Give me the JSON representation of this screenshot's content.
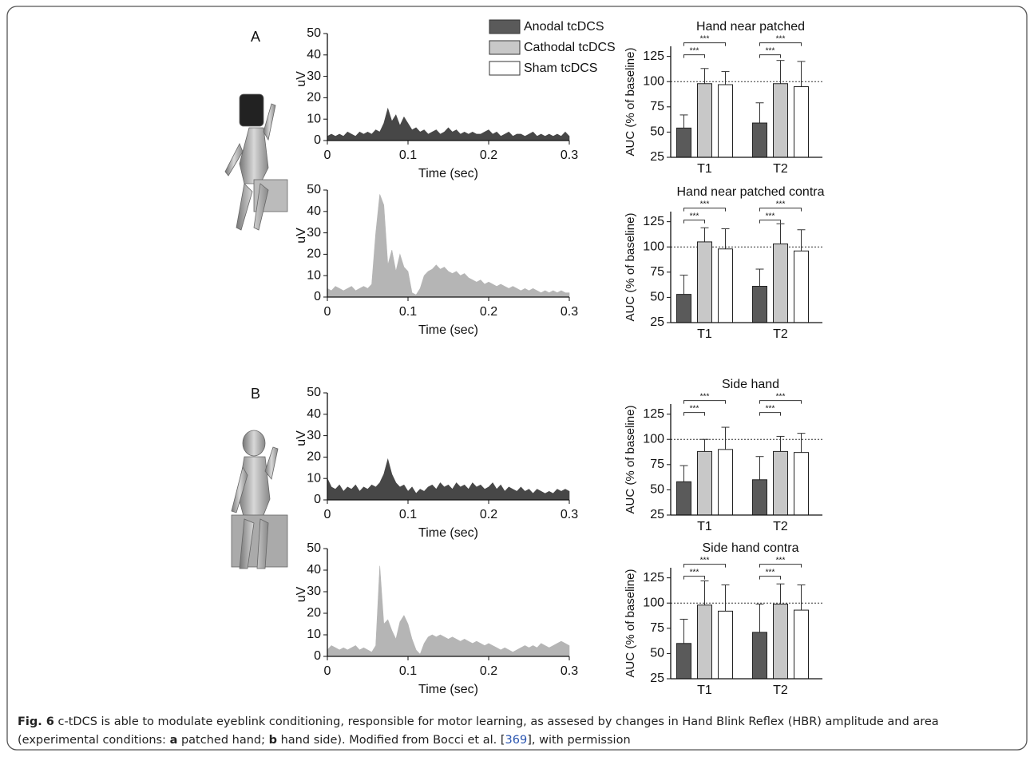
{
  "panels": [
    "A",
    "B"
  ],
  "legend": [
    {
      "name": "Anodal tcDCS",
      "color": "#5a5a5a"
    },
    {
      "name": "Cathodal tcDCS",
      "color": "#c8c8c8"
    },
    {
      "name": "Sham tcDCS",
      "color": "#ffffff"
    }
  ],
  "chart_data": [
    {
      "type": "area",
      "color": "#474747",
      "xlabel": "Time (sec)",
      "ylabel": "uV",
      "xlim": [
        0,
        0.3
      ],
      "ylim": [
        0,
        50
      ],
      "xticks": [
        0,
        0.1,
        0.2,
        0.3
      ],
      "yticks": [
        0,
        10,
        20,
        30,
        40,
        50
      ],
      "x": [
        0,
        0.005,
        0.01,
        0.015,
        0.02,
        0.025,
        0.03,
        0.035,
        0.04,
        0.045,
        0.05,
        0.055,
        0.06,
        0.065,
        0.07,
        0.075,
        0.08,
        0.085,
        0.09,
        0.095,
        0.1,
        0.105,
        0.11,
        0.115,
        0.12,
        0.125,
        0.13,
        0.135,
        0.14,
        0.145,
        0.15,
        0.155,
        0.16,
        0.165,
        0.17,
        0.175,
        0.18,
        0.185,
        0.19,
        0.195,
        0.2,
        0.205,
        0.21,
        0.215,
        0.22,
        0.225,
        0.23,
        0.235,
        0.24,
        0.245,
        0.25,
        0.255,
        0.26,
        0.265,
        0.27,
        0.275,
        0.28,
        0.285,
        0.29,
        0.295,
        0.3
      ],
      "values": [
        2,
        3,
        2,
        3,
        2,
        4,
        3,
        2,
        4,
        3,
        4,
        3,
        5,
        4,
        8,
        15,
        9,
        12,
        7,
        11,
        8,
        5,
        6,
        4,
        5,
        3,
        4,
        5,
        3,
        4,
        6,
        4,
        5,
        3,
        4,
        3,
        4,
        3,
        3,
        4,
        5,
        3,
        4,
        2,
        3,
        4,
        2,
        3,
        3,
        2,
        3,
        4,
        2,
        3,
        2,
        3,
        2,
        3,
        2,
        4,
        2
      ]
    },
    {
      "type": "bar",
      "title": "Hand near patched",
      "ylabel": "AUC (% of baseline)",
      "categories": [
        "T1",
        "T2"
      ],
      "ylim": [
        25,
        135
      ],
      "yticks": [
        25,
        50,
        75,
        100,
        125
      ],
      "refline": 100,
      "series": [
        {
          "color": "#5a5a5a",
          "values": [
            54,
            59
          ],
          "errors": [
            13,
            20
          ]
        },
        {
          "color": "#c8c8c8",
          "values": [
            98,
            98
          ],
          "errors": [
            15,
            23
          ]
        },
        {
          "color": "#ffffff",
          "values": [
            97,
            95
          ],
          "errors": [
            13,
            25
          ]
        }
      ],
      "brackets": [
        {
          "group": 0,
          "from": 0,
          "to": 1,
          "label": "***"
        },
        {
          "group": 0,
          "from": 0,
          "to": 2,
          "label": "***"
        },
        {
          "group": 1,
          "from": 0,
          "to": 1,
          "label": "***"
        },
        {
          "group": 1,
          "from": 0,
          "to": 2,
          "label": "***"
        }
      ]
    },
    {
      "type": "area",
      "color": "#b5b5b5",
      "xlabel": "Time (sec)",
      "ylabel": "uV",
      "xlim": [
        0,
        0.3
      ],
      "ylim": [
        0,
        50
      ],
      "xticks": [
        0,
        0.1,
        0.2,
        0.3
      ],
      "yticks": [
        0,
        10,
        20,
        30,
        40,
        50
      ],
      "x": [
        0,
        0.005,
        0.01,
        0.015,
        0.02,
        0.025,
        0.03,
        0.035,
        0.04,
        0.045,
        0.05,
        0.055,
        0.06,
        0.065,
        0.07,
        0.075,
        0.08,
        0.085,
        0.09,
        0.095,
        0.1,
        0.105,
        0.11,
        0.115,
        0.12,
        0.125,
        0.13,
        0.135,
        0.14,
        0.145,
        0.15,
        0.155,
        0.16,
        0.165,
        0.17,
        0.175,
        0.18,
        0.185,
        0.19,
        0.195,
        0.2,
        0.205,
        0.21,
        0.215,
        0.22,
        0.225,
        0.23,
        0.235,
        0.24,
        0.245,
        0.25,
        0.255,
        0.26,
        0.265,
        0.27,
        0.275,
        0.28,
        0.285,
        0.29,
        0.295,
        0.3
      ],
      "values": [
        4,
        3,
        5,
        4,
        3,
        4,
        5,
        3,
        4,
        5,
        4,
        6,
        30,
        48,
        43,
        15,
        22,
        12,
        20,
        14,
        12,
        2,
        1,
        4,
        10,
        12,
        13,
        15,
        13,
        14,
        12,
        11,
        12,
        10,
        11,
        9,
        8,
        7,
        8,
        6,
        7,
        6,
        5,
        6,
        5,
        4,
        5,
        4,
        3,
        4,
        3,
        4,
        3,
        2,
        3,
        2,
        3,
        2,
        3,
        2,
        2
      ]
    },
    {
      "type": "bar",
      "title": "Hand near patched contra",
      "ylabel": "AUC (% of baseline)",
      "categories": [
        "T1",
        "T2"
      ],
      "ylim": [
        25,
        135
      ],
      "yticks": [
        25,
        50,
        75,
        100,
        125
      ],
      "refline": 100,
      "series": [
        {
          "color": "#5a5a5a",
          "values": [
            53,
            61
          ],
          "errors": [
            19,
            17
          ]
        },
        {
          "color": "#c8c8c8",
          "values": [
            105,
            103
          ],
          "errors": [
            14,
            20
          ]
        },
        {
          "color": "#ffffff",
          "values": [
            98,
            96
          ],
          "errors": [
            20,
            21
          ]
        }
      ],
      "brackets": [
        {
          "group": 0,
          "from": 0,
          "to": 1,
          "label": "***"
        },
        {
          "group": 0,
          "from": 0,
          "to": 2,
          "label": "***"
        },
        {
          "group": 1,
          "from": 0,
          "to": 1,
          "label": "***"
        },
        {
          "group": 1,
          "from": 0,
          "to": 2,
          "label": "***"
        }
      ]
    },
    {
      "type": "area",
      "color": "#474747",
      "xlabel": "Time (sec)",
      "ylabel": "uV",
      "xlim": [
        0,
        0.3
      ],
      "ylim": [
        0,
        50
      ],
      "xticks": [
        0,
        0.1,
        0.2,
        0.3
      ],
      "yticks": [
        0,
        10,
        20,
        30,
        40,
        50
      ],
      "x": [
        0,
        0.005,
        0.01,
        0.015,
        0.02,
        0.025,
        0.03,
        0.035,
        0.04,
        0.045,
        0.05,
        0.055,
        0.06,
        0.065,
        0.07,
        0.075,
        0.08,
        0.085,
        0.09,
        0.095,
        0.1,
        0.105,
        0.11,
        0.115,
        0.12,
        0.125,
        0.13,
        0.135,
        0.14,
        0.145,
        0.15,
        0.155,
        0.16,
        0.165,
        0.17,
        0.175,
        0.18,
        0.185,
        0.19,
        0.195,
        0.2,
        0.205,
        0.21,
        0.215,
        0.22,
        0.225,
        0.23,
        0.235,
        0.24,
        0.245,
        0.25,
        0.255,
        0.26,
        0.265,
        0.27,
        0.275,
        0.28,
        0.285,
        0.29,
        0.295,
        0.3
      ],
      "values": [
        10,
        6,
        5,
        7,
        4,
        6,
        5,
        7,
        4,
        6,
        5,
        7,
        6,
        8,
        12,
        19,
        12,
        8,
        6,
        7,
        4,
        6,
        3,
        5,
        4,
        6,
        7,
        5,
        8,
        6,
        7,
        5,
        8,
        6,
        7,
        5,
        8,
        6,
        7,
        5,
        6,
        8,
        5,
        7,
        4,
        6,
        5,
        4,
        6,
        4,
        5,
        3,
        5,
        4,
        3,
        4,
        3,
        5,
        4,
        5,
        4
      ]
    },
    {
      "type": "bar",
      "title": "Side hand",
      "ylabel": "AUC (% of baseline)",
      "categories": [
        "T1",
        "T2"
      ],
      "ylim": [
        25,
        135
      ],
      "yticks": [
        25,
        50,
        75,
        100,
        125
      ],
      "refline": 100,
      "series": [
        {
          "color": "#5a5a5a",
          "values": [
            58,
            60
          ],
          "errors": [
            16,
            23
          ]
        },
        {
          "color": "#c8c8c8",
          "values": [
            88,
            88
          ],
          "errors": [
            12,
            15
          ]
        },
        {
          "color": "#ffffff",
          "values": [
            90,
            87
          ],
          "errors": [
            22,
            19
          ]
        }
      ],
      "brackets": [
        {
          "group": 0,
          "from": 0,
          "to": 1,
          "label": "***"
        },
        {
          "group": 0,
          "from": 0,
          "to": 2,
          "label": "***"
        },
        {
          "group": 1,
          "from": 0,
          "to": 1,
          "label": "***"
        },
        {
          "group": 1,
          "from": 0,
          "to": 2,
          "label": "***"
        }
      ]
    },
    {
      "type": "area",
      "color": "#b5b5b5",
      "xlabel": "Time (sec)",
      "ylabel": "uV",
      "xlim": [
        0,
        0.3
      ],
      "ylim": [
        0,
        50
      ],
      "xticks": [
        0,
        0.1,
        0.2,
        0.3
      ],
      "yticks": [
        0,
        10,
        20,
        30,
        40,
        50
      ],
      "x": [
        0,
        0.005,
        0.01,
        0.015,
        0.02,
        0.025,
        0.03,
        0.035,
        0.04,
        0.045,
        0.05,
        0.055,
        0.06,
        0.065,
        0.07,
        0.075,
        0.08,
        0.085,
        0.09,
        0.095,
        0.1,
        0.105,
        0.11,
        0.115,
        0.12,
        0.125,
        0.13,
        0.135,
        0.14,
        0.145,
        0.15,
        0.155,
        0.16,
        0.165,
        0.17,
        0.175,
        0.18,
        0.185,
        0.19,
        0.195,
        0.2,
        0.205,
        0.21,
        0.215,
        0.22,
        0.225,
        0.23,
        0.235,
        0.24,
        0.245,
        0.25,
        0.255,
        0.26,
        0.265,
        0.27,
        0.275,
        0.28,
        0.285,
        0.29,
        0.295,
        0.3
      ],
      "values": [
        3,
        5,
        4,
        3,
        4,
        3,
        4,
        5,
        3,
        4,
        3,
        2,
        5,
        42,
        15,
        17,
        12,
        8,
        16,
        19,
        15,
        8,
        3,
        1,
        6,
        9,
        10,
        9,
        10,
        9,
        8,
        9,
        8,
        7,
        8,
        7,
        6,
        7,
        6,
        5,
        6,
        5,
        4,
        3,
        4,
        3,
        2,
        3,
        4,
        5,
        4,
        5,
        4,
        6,
        5,
        4,
        5,
        6,
        7,
        6,
        5
      ]
    },
    {
      "type": "bar",
      "title": "Side hand contra",
      "ylabel": "AUC (% of baseline)",
      "categories": [
        "T1",
        "T2"
      ],
      "ylim": [
        25,
        135
      ],
      "yticks": [
        25,
        50,
        75,
        100,
        125
      ],
      "refline": 100,
      "series": [
        {
          "color": "#5a5a5a",
          "values": [
            60,
            71
          ],
          "errors": [
            24,
            28
          ]
        },
        {
          "color": "#c8c8c8",
          "values": [
            98,
            99
          ],
          "errors": [
            24,
            20
          ]
        },
        {
          "color": "#ffffff",
          "values": [
            92,
            93
          ],
          "errors": [
            26,
            25
          ]
        }
      ],
      "brackets": [
        {
          "group": 0,
          "from": 0,
          "to": 1,
          "label": "***"
        },
        {
          "group": 0,
          "from": 0,
          "to": 2,
          "label": "***"
        },
        {
          "group": 1,
          "from": 0,
          "to": 1,
          "label": "***"
        },
        {
          "group": 1,
          "from": 0,
          "to": 2,
          "label": "***"
        }
      ]
    }
  ],
  "caption": [
    {
      "text": "Fig. 6",
      "bold": true
    },
    {
      "text": " c-tDCS is able to modulate eyeblink conditioning, responsible for motor learning, as assesed by changes in Hand Blink Reflex (HBR) amplitude and area (experimental conditions: "
    },
    {
      "text": "a",
      "bold": true
    },
    {
      "text": " patched hand; "
    },
    {
      "text": "b",
      "bold": true
    },
    {
      "text": " hand side). Modified from Bocci et al. ["
    },
    {
      "text": "369",
      "link": true
    },
    {
      "text": "], with permission"
    }
  ]
}
